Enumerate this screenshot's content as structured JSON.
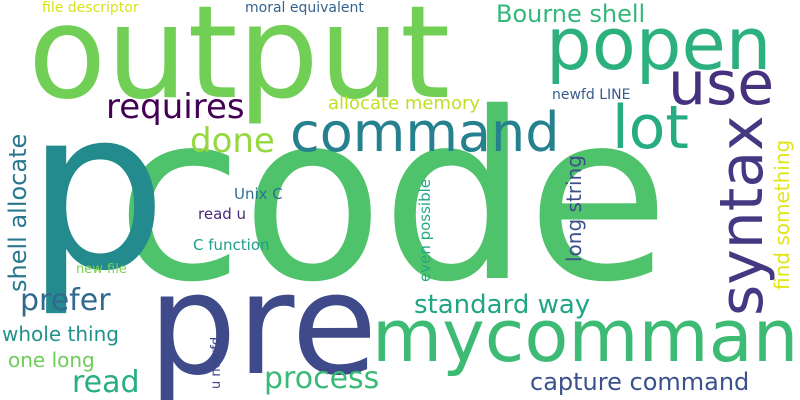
{
  "words": [
    {
      "text": "code",
      "color": "#4fc36b"
    },
    {
      "text": "output",
      "color": "#72cf56"
    },
    {
      "text": "pre",
      "color": "#3e4a89"
    },
    {
      "text": "p",
      "color": "#238a8d"
    },
    {
      "text": "mycommand",
      "color": "#3dbb74"
    },
    {
      "text": "popen",
      "color": "#2cb17e"
    },
    {
      "text": "command",
      "color": "#26818e"
    },
    {
      "text": "syntax",
      "color": "#453882"
    },
    {
      "text": "lot",
      "color": "#25ac82"
    },
    {
      "text": "use",
      "color": "#46317e"
    },
    {
      "text": "requires",
      "color": "#440154"
    },
    {
      "text": "done",
      "color": "#95d840"
    },
    {
      "text": "Bourne shell",
      "color": "#35b779"
    },
    {
      "text": "allocate memory",
      "color": "#bddf26"
    },
    {
      "text": "newfd LINE",
      "color": "#375b8d"
    },
    {
      "text": "shell allocate",
      "color": "#2a788e"
    },
    {
      "text": "prefer",
      "color": "#306a8e"
    },
    {
      "text": "standard way",
      "color": "#21a585"
    },
    {
      "text": "whole thing",
      "color": "#20928c"
    },
    {
      "text": "process",
      "color": "#3aba76"
    },
    {
      "text": "read",
      "color": "#29af7f"
    },
    {
      "text": "capture command",
      "color": "#3b518b"
    },
    {
      "text": "one long",
      "color": "#6ccd5a"
    },
    {
      "text": "long string",
      "color": "#3c4f8a"
    },
    {
      "text": "find something",
      "color": "#e2e418"
    },
    {
      "text": "even possible",
      "color": "#22a884"
    },
    {
      "text": "Unix C",
      "color": "#2e6f8e"
    },
    {
      "text": "read u",
      "color": "#482878"
    },
    {
      "text": "C function",
      "color": "#1f9e89"
    },
    {
      "text": "new file",
      "color": "#7ad151"
    },
    {
      "text": "u newfd",
      "color": "#3f4788"
    },
    {
      "text": "file descriptor",
      "color": "#d8e219"
    },
    {
      "text": "moral equivalent",
      "color": "#33638d"
    }
  ]
}
